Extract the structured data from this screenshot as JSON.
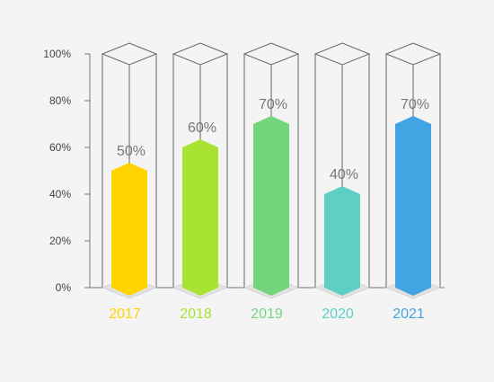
{
  "chart_data": {
    "type": "bar",
    "categories": [
      "2017",
      "2018",
      "2019",
      "2020",
      "2021"
    ],
    "values": [
      50,
      60,
      70,
      40,
      70
    ],
    "value_labels": [
      "50%",
      "60%",
      "70%",
      "40%",
      "70%"
    ],
    "ylim": [
      0,
      100
    ],
    "yticks": [
      0,
      20,
      40,
      60,
      80,
      100
    ],
    "ytick_labels": [
      "0%",
      "20%",
      "40%",
      "60%",
      "80%",
      "100%"
    ],
    "colors": [
      "#ffd400",
      "#a8e332",
      "#74d67c",
      "#5ecfc4",
      "#42a4e2"
    ],
    "title": "",
    "xlabel": "",
    "ylabel": "",
    "grid": false,
    "legend": "none"
  }
}
